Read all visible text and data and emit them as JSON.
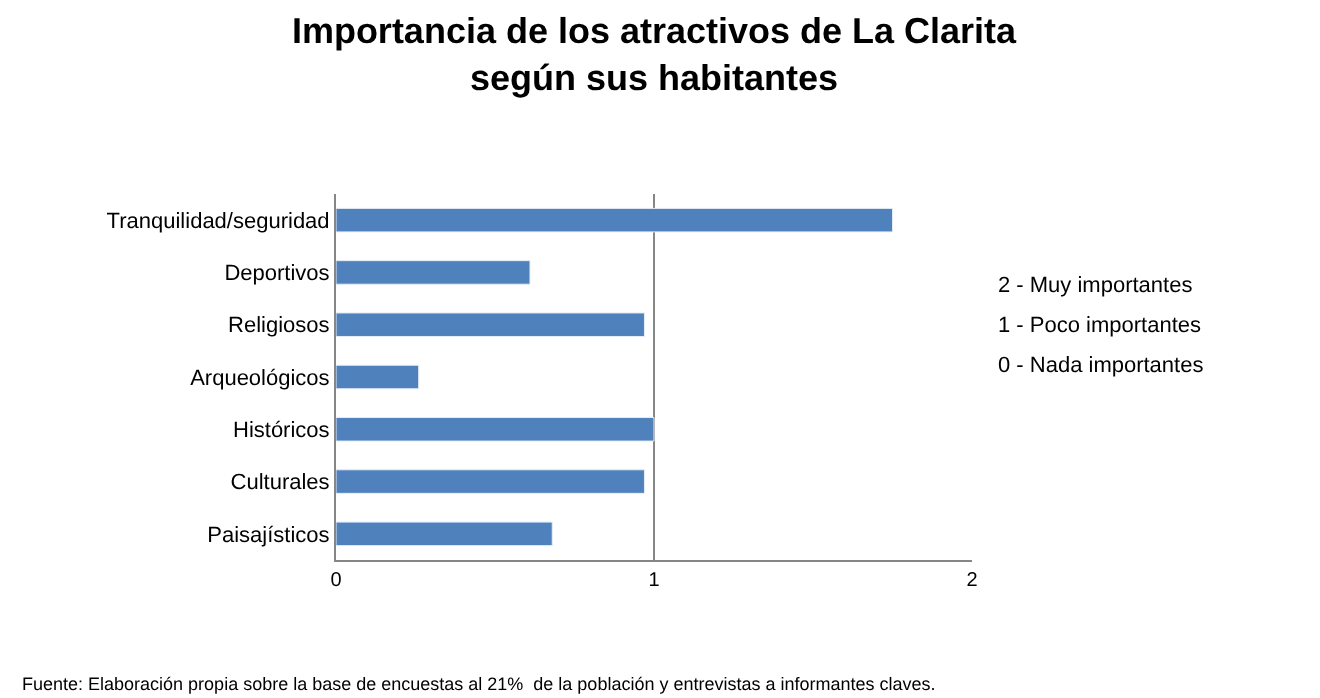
{
  "chart_data": {
    "type": "bar",
    "orientation": "horizontal",
    "title": "Importancia de los atractivos de La Clarita\nsegún sus habitantes",
    "categories": [
      "Tranquilidad/seguridad",
      "Deportivos",
      "Religiosos",
      "Arqueológicos",
      "Históricos",
      "Culturales",
      "Paisajísticos"
    ],
    "values": [
      1.75,
      0.61,
      0.97,
      0.26,
      1.0,
      0.97,
      0.68
    ],
    "color": "#4f81bd",
    "xlim": [
      0,
      2
    ],
    "xticks": [
      0,
      1,
      2
    ],
    "grid": "x",
    "annotations": [
      "2 - Muy importantes",
      "1 - Poco importantes",
      "0 - Nada importantes",
      "Fuente: Elaboración propia sobre la base de encuestas al 21%  de la población y entrevistas a informantes claves."
    ]
  }
}
